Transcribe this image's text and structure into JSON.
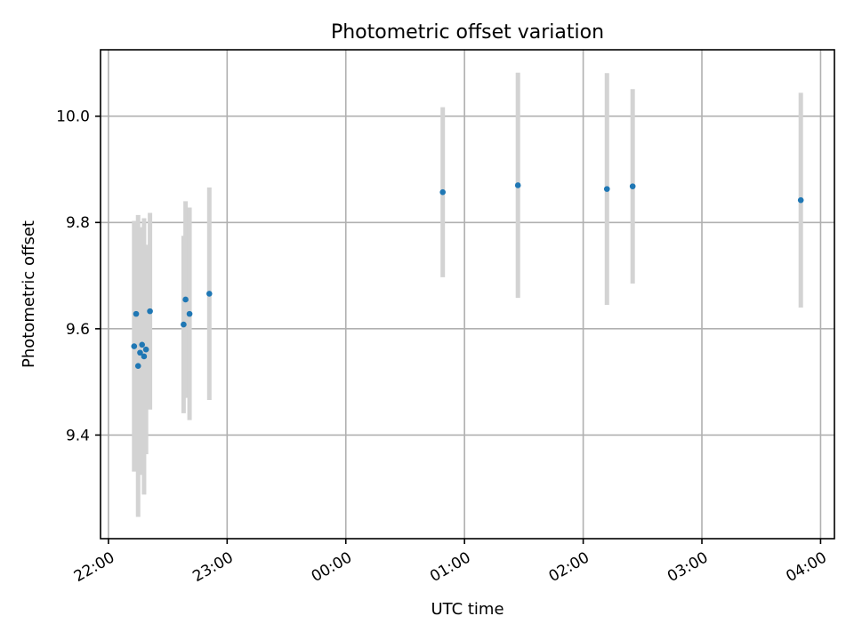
{
  "chart_data": {
    "type": "scatter",
    "title": "Photometric offset variation",
    "xlabel": "UTC time",
    "ylabel": "Photometric offset",
    "x_axis": "time",
    "xlim": [
      "21:56",
      "04:07"
    ],
    "ylim": [
      9.205,
      10.125
    ],
    "x_ticks": [
      "22:00",
      "23:00",
      "00:00",
      "01:00",
      "02:00",
      "03:00",
      "04:00"
    ],
    "y_ticks": [
      "9.4",
      "9.6",
      "9.8",
      "10.0"
    ],
    "grid": true,
    "point_color": "#1f77b4",
    "errorbar_color": "#d3d3d3",
    "series": [
      {
        "points": [
          {
            "t": "22:13",
            "y": 9.567,
            "err": 0.236
          },
          {
            "t": "22:14",
            "y": 9.628,
            "err": 0.172
          },
          {
            "t": "22:15",
            "y": 9.53,
            "err": 0.284
          },
          {
            "t": "22:16",
            "y": 9.555,
            "err": 0.23
          },
          {
            "t": "22:17",
            "y": 9.57,
            "err": 0.221
          },
          {
            "t": "22:18",
            "y": 9.548,
            "err": 0.26
          },
          {
            "t": "22:19",
            "y": 9.561,
            "err": 0.197
          },
          {
            "t": "22:21",
            "y": 9.633,
            "err": 0.185
          },
          {
            "t": "22:38",
            "y": 9.608,
            "err": 0.167
          },
          {
            "t": "22:39",
            "y": 9.655,
            "err": 0.185
          },
          {
            "t": "22:41",
            "y": 9.628,
            "err": 0.2
          },
          {
            "t": "22:51",
            "y": 9.666,
            "err": 0.2
          },
          {
            "t": "00:49",
            "y": 9.857,
            "err": 0.16
          },
          {
            "t": "01:27",
            "y": 9.87,
            "err": 0.212
          },
          {
            "t": "02:12",
            "y": 9.863,
            "err": 0.218
          },
          {
            "t": "02:25",
            "y": 9.868,
            "err": 0.183
          },
          {
            "t": "03:50",
            "y": 9.842,
            "err": 0.202
          }
        ]
      }
    ]
  }
}
